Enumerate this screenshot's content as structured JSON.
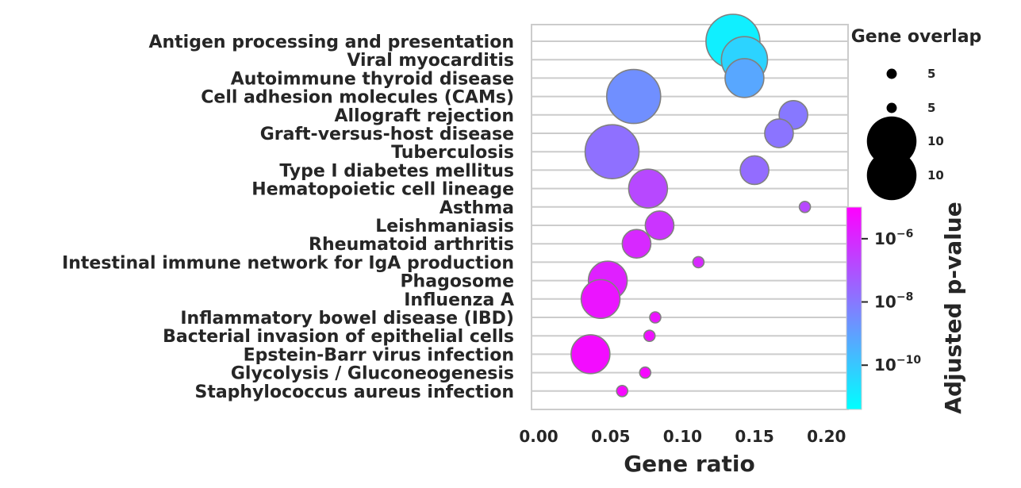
{
  "chart_data": {
    "type": "scatter",
    "xlabel": "Gene ratio",
    "xlim": [
      -0.005,
      0.215
    ],
    "xticks": [
      {
        "value": 0.0,
        "label": "0.00"
      },
      {
        "value": 0.05,
        "label": "0.05"
      },
      {
        "value": 0.1,
        "label": "0.10"
      },
      {
        "value": 0.15,
        "label": "0.15"
      },
      {
        "value": 0.2,
        "label": "0.20"
      }
    ],
    "grid": "horizontal",
    "categories": [
      "Antigen processing and presentation",
      "Viral myocarditis",
      "Autoimmune thyroid disease",
      "Cell adhesion molecules (CAMs)",
      "Allograft rejection",
      "Graft-versus-host disease",
      "Tuberculosis",
      "Type I diabetes mellitus",
      "Hematopoietic cell lineage",
      "Asthma",
      "Leishmaniasis",
      "Rheumatoid arthritis",
      "Intestinal immune network for IgA production",
      "Phagosome",
      "Influenza A",
      "Inflammatory bowel disease (IBD)",
      "Bacterial invasion of epithelial cells",
      "Epstein-Barr virus infection",
      "Glycolysis / Gluconeogenesis",
      "Staphylococcus aureus infection"
    ],
    "points": [
      {
        "term": "Antigen processing and presentation",
        "gene_ratio": 0.135,
        "overlap": 13,
        "log10_padj": -11.0
      },
      {
        "term": "Viral myocarditis",
        "gene_ratio": 0.143,
        "overlap": 9,
        "log10_padj": -10.3
      },
      {
        "term": "Autoimmune thyroid disease",
        "gene_ratio": 0.143,
        "overlap": 6,
        "log10_padj": -9.2
      },
      {
        "term": "Cell adhesion molecules (CAMs)",
        "gene_ratio": 0.066,
        "overlap": 13,
        "log10_padj": -8.6
      },
      {
        "term": "Allograft rejection",
        "gene_ratio": 0.177,
        "overlap": 3,
        "log10_padj": -8.0
      },
      {
        "term": "Graft-versus-host disease",
        "gene_ratio": 0.167,
        "overlap": 3,
        "log10_padj": -7.9
      },
      {
        "term": "Tuberculosis",
        "gene_ratio": 0.051,
        "overlap": 13,
        "log10_padj": -7.8
      },
      {
        "term": "Type I diabetes mellitus",
        "gene_ratio": 0.15,
        "overlap": 3,
        "log10_padj": -7.7
      },
      {
        "term": "Hematopoietic cell lineage",
        "gene_ratio": 0.076,
        "overlap": 6,
        "log10_padj": -6.8
      },
      {
        "term": "Asthma",
        "gene_ratio": 0.185,
        "overlap": 1,
        "log10_padj": -6.8
      },
      {
        "term": "Leishmaniasis",
        "gene_ratio": 0.084,
        "overlap": 3,
        "log10_padj": -6.3
      },
      {
        "term": "Rheumatoid arthritis",
        "gene_ratio": 0.068,
        "overlap": 3,
        "log10_padj": -6.0
      },
      {
        "term": "Intestinal immune network for IgA production",
        "gene_ratio": 0.111,
        "overlap": 1,
        "log10_padj": -6.0
      },
      {
        "term": "Phagosome",
        "gene_ratio": 0.048,
        "overlap": 6,
        "log10_padj": -5.8
      },
      {
        "term": "Influenza A",
        "gene_ratio": 0.043,
        "overlap": 6,
        "log10_padj": -5.5
      },
      {
        "term": "Inflammatory bowel disease (IBD)",
        "gene_ratio": 0.081,
        "overlap": 1,
        "log10_padj": -5.5
      },
      {
        "term": "Bacterial invasion of epithelial cells",
        "gene_ratio": 0.077,
        "overlap": 1,
        "log10_padj": -5.4
      },
      {
        "term": "Epstein-Barr virus infection",
        "gene_ratio": 0.036,
        "overlap": 6,
        "log10_padj": -5.3
      },
      {
        "term": "Glycolysis / Gluconeogenesis",
        "gene_ratio": 0.074,
        "overlap": 1,
        "log10_padj": -5.2
      },
      {
        "term": "Staphylococcus aureus infection",
        "gene_ratio": 0.058,
        "overlap": 1,
        "log10_padj": -5.2
      }
    ],
    "size_legend": {
      "title": "Gene overlap",
      "entries": [
        {
          "label": "5",
          "overlap": 1
        },
        {
          "label": "5",
          "overlap": 1
        },
        {
          "label": "10",
          "overlap": 13
        },
        {
          "label": "10",
          "overlap": 13
        }
      ]
    },
    "colorbar": {
      "label": "Adjusted p-value",
      "scale": "log",
      "range_log10": [
        -11.4,
        -5.0
      ],
      "colormap": [
        "#00ffff",
        "#ff00ff"
      ],
      "ticks": [
        {
          "log10": -6,
          "base": "10",
          "exp": "−6"
        },
        {
          "log10": -8,
          "base": "10",
          "exp": "−8"
        },
        {
          "log10": -10,
          "base": "10",
          "exp": "−10"
        }
      ]
    },
    "colors": {
      "marker_edge": "#808080",
      "grid": "#cccccc",
      "frame": "#cccccc",
      "text": "#262626"
    }
  }
}
